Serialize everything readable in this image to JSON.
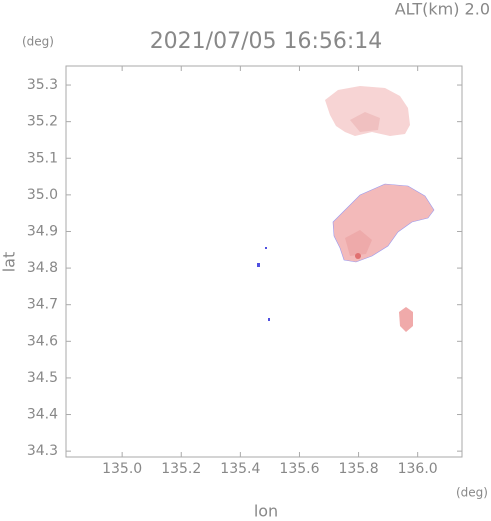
{
  "chart_data": {
    "type": "map",
    "title": "2021/07/05 16:56:14",
    "subtitle": "ALT(km) 2.0",
    "y_unit": "(deg)",
    "x_unit": "(deg)",
    "ylabel": "lat",
    "xlabel": "lon",
    "xlim": [
      134.81,
      136.15
    ],
    "xticks": [
      {
        "value": 135.0,
        "label": "135.0"
      },
      135.2,
      135.4,
      135.6,
      135.8,
      {
        "value": 136.0,
        "label": "136.0"
      }
    ],
    "ylim": [
      34.284,
      35.352
    ],
    "yticks": [
      34.3,
      34.4,
      34.5,
      34.6,
      34.7,
      34.8,
      34.9,
      {
        "value": 35.0,
        "label": "35.0"
      },
      35.1,
      35.2,
      35.3
    ]
  }
}
